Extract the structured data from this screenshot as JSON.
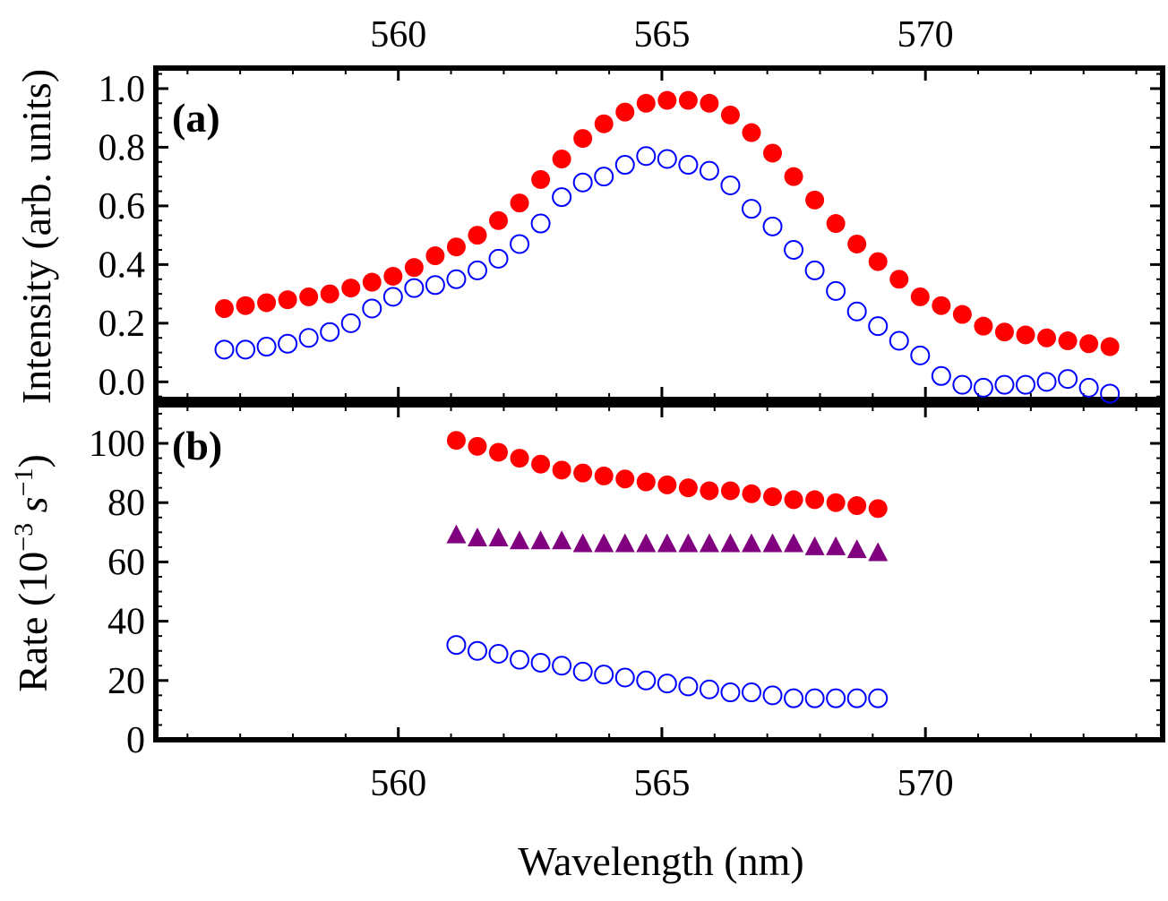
{
  "chart_data": [
    {
      "panel": "(a)",
      "type": "scatter",
      "ylabel": "Intensity (arb. units)",
      "xlabel": "Wavelength (nm)",
      "xlim": [
        555.4,
        574.5
      ],
      "ylim": [
        -0.06,
        1.07
      ],
      "x_ticks": [
        "560",
        "565",
        "570"
      ],
      "y_ticks": [
        "0.0",
        "0.2",
        "0.4",
        "0.6",
        "0.8",
        "1.0"
      ],
      "x_tick_values": [
        560,
        565,
        570
      ],
      "y_tick_values": [
        0.0,
        0.2,
        0.4,
        0.6,
        0.8,
        1.0
      ],
      "series": [
        {
          "name": "filled",
          "marker": "filled-circle",
          "color": "#ff0000",
          "x": [
            556.7,
            557.1,
            557.5,
            557.9,
            558.3,
            558.7,
            559.1,
            559.5,
            559.9,
            560.3,
            560.7,
            561.1,
            561.5,
            561.9,
            562.3,
            562.7,
            563.1,
            563.5,
            563.9,
            564.3,
            564.7,
            565.1,
            565.5,
            565.9,
            566.3,
            566.7,
            567.1,
            567.5,
            567.9,
            568.3,
            568.7,
            569.1,
            569.5,
            569.9,
            570.3,
            570.7,
            571.1,
            571.5,
            571.9,
            572.3,
            572.7,
            573.1,
            573.5
          ],
          "y": [
            0.25,
            0.26,
            0.27,
            0.28,
            0.29,
            0.3,
            0.32,
            0.34,
            0.36,
            0.39,
            0.43,
            0.46,
            0.5,
            0.55,
            0.61,
            0.69,
            0.76,
            0.83,
            0.88,
            0.92,
            0.95,
            0.96,
            0.96,
            0.95,
            0.91,
            0.85,
            0.78,
            0.7,
            0.62,
            0.54,
            0.47,
            0.41,
            0.35,
            0.29,
            0.26,
            0.23,
            0.19,
            0.17,
            0.16,
            0.15,
            0.14,
            0.13,
            0.12
          ]
        },
        {
          "name": "open",
          "marker": "open-circle",
          "color": "#0000ff",
          "x": [
            556.7,
            557.1,
            557.5,
            557.9,
            558.3,
            558.7,
            559.1,
            559.5,
            559.9,
            560.3,
            560.7,
            561.1,
            561.5,
            561.9,
            562.3,
            562.7,
            563.1,
            563.5,
            563.9,
            564.3,
            564.7,
            565.1,
            565.5,
            565.9,
            566.3,
            566.7,
            567.1,
            567.5,
            567.9,
            568.3,
            568.7,
            569.1,
            569.5,
            569.9,
            570.3,
            570.7,
            571.1,
            571.5,
            571.9,
            572.3,
            572.7,
            573.1,
            573.5
          ],
          "y": [
            0.11,
            0.11,
            0.12,
            0.13,
            0.15,
            0.17,
            0.2,
            0.25,
            0.29,
            0.32,
            0.33,
            0.35,
            0.38,
            0.42,
            0.47,
            0.54,
            0.63,
            0.68,
            0.7,
            0.74,
            0.77,
            0.76,
            0.74,
            0.72,
            0.67,
            0.59,
            0.53,
            0.45,
            0.38,
            0.31,
            0.24,
            0.19,
            0.14,
            0.09,
            0.02,
            -0.01,
            -0.02,
            -0.01,
            -0.01,
            0.0,
            0.01,
            -0.02,
            -0.04
          ]
        }
      ]
    },
    {
      "panel": "(b)",
      "type": "scatter",
      "ylabel_prefix": "Rate (10",
      "ylabel_exp1": "−3",
      "ylabel_unit": " s",
      "ylabel_exp2": "−1",
      "ylabel_suffix": ")",
      "xlabel": "Wavelength (nm)",
      "xlim": [
        555.4,
        574.5
      ],
      "ylim": [
        0,
        113
      ],
      "x_ticks": [
        "560",
        "565",
        "570"
      ],
      "y_ticks": [
        "0",
        "20",
        "40",
        "60",
        "80",
        "100"
      ],
      "x_tick_values": [
        560,
        565,
        570
      ],
      "y_tick_values": [
        0,
        20,
        40,
        60,
        80,
        100
      ],
      "series": [
        {
          "name": "filled",
          "marker": "filled-circle",
          "color": "#ff0000",
          "x": [
            561.1,
            561.5,
            561.9,
            562.3,
            562.7,
            563.1,
            563.5,
            563.9,
            564.3,
            564.7,
            565.1,
            565.5,
            565.9,
            566.3,
            566.7,
            567.1,
            567.5,
            567.9,
            568.3,
            568.7,
            569.1
          ],
          "y": [
            101,
            99,
            97,
            95,
            93,
            91,
            90,
            89,
            88,
            87,
            86,
            85,
            84,
            84,
            83,
            82,
            81,
            81,
            80,
            79,
            78
          ]
        },
        {
          "name": "triangle",
          "marker": "filled-triangle",
          "color": "#800080",
          "x": [
            561.1,
            561.5,
            561.9,
            562.3,
            562.7,
            563.1,
            563.5,
            563.9,
            564.3,
            564.7,
            565.1,
            565.5,
            565.9,
            566.3,
            566.7,
            567.1,
            567.5,
            567.9,
            568.3,
            568.7,
            569.1
          ],
          "y": [
            69,
            68,
            68,
            67,
            67,
            67,
            66,
            66,
            66,
            66,
            66,
            66,
            66,
            66,
            66,
            66,
            66,
            65,
            65,
            64,
            63
          ]
        },
        {
          "name": "open",
          "marker": "open-circle",
          "color": "#0000ff",
          "x": [
            561.1,
            561.5,
            561.9,
            562.3,
            562.7,
            563.1,
            563.5,
            563.9,
            564.3,
            564.7,
            565.1,
            565.5,
            565.9,
            566.3,
            566.7,
            567.1,
            567.5,
            567.9,
            568.3,
            568.7,
            569.1
          ],
          "y": [
            32,
            30,
            29,
            27,
            26,
            25,
            23,
            22,
            21,
            20,
            19,
            18,
            17,
            16,
            16,
            15,
            14,
            14,
            14,
            14,
            14
          ]
        }
      ]
    }
  ],
  "x_axis_title": "Wavelength (nm)"
}
